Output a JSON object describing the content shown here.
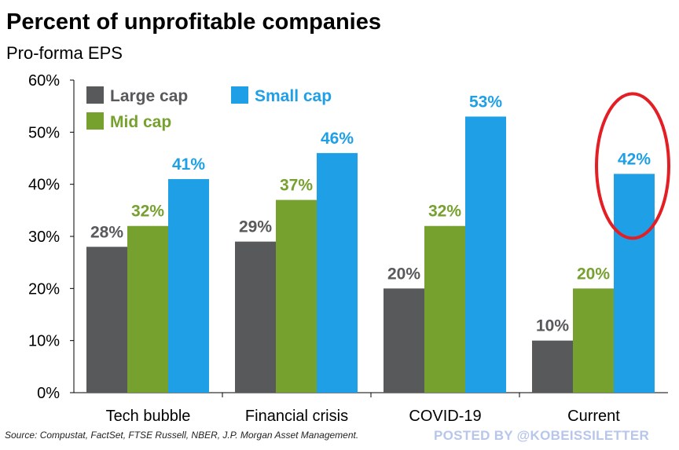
{
  "title": "Percent of unprofitable companies",
  "subtitle": "Pro-forma EPS",
  "source": "Source: Compustat, FactSet, FTSE Russell, NBER, J.P. Morgan Asset Management.",
  "watermark": "POSTED BY @KOBEISSILETTER",
  "colors": {
    "large_cap": "#58595b",
    "mid_cap": "#76a12f",
    "small_cap": "#1fa0e6",
    "highlight": "#e31e24",
    "axis": "#000000"
  },
  "chart_data": {
    "type": "bar",
    "title": "Percent of unprofitable companies",
    "subtitle": "Pro-forma EPS",
    "categories": [
      "Tech bubble",
      "Financial crisis",
      "COVID-19",
      "Current"
    ],
    "series": [
      {
        "name": "Large cap",
        "values": [
          28,
          29,
          20,
          10
        ],
        "labels": [
          "28%",
          "29%",
          "20%",
          "10%"
        ]
      },
      {
        "name": "Mid cap",
        "values": [
          32,
          37,
          32,
          20
        ],
        "labels": [
          "32%",
          "37%",
          "32%",
          "20%"
        ]
      },
      {
        "name": "Small cap",
        "values": [
          41,
          46,
          53,
          42
        ],
        "labels": [
          "41%",
          "46%",
          "53%",
          "42%"
        ]
      }
    ],
    "y_ticks": [
      "0%",
      "10%",
      "20%",
      "30%",
      "40%",
      "50%",
      "60%"
    ],
    "ylim": [
      0,
      60
    ],
    "xlabel": "",
    "ylabel": "",
    "grid": false,
    "legend_position": "top-left",
    "annotation": "red circle around Current small cap bar"
  }
}
